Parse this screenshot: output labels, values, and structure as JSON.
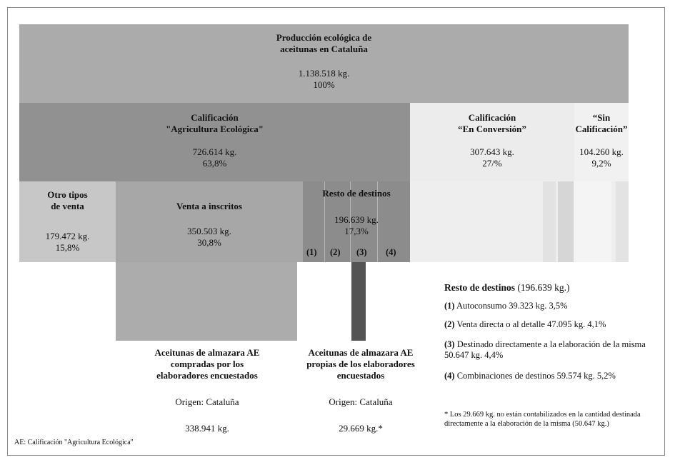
{
  "colors": {
    "top": "#ababab",
    "ae": "#919191",
    "conv": "#ececec",
    "sin": "#f1f1f1",
    "otro": "#c7c7c7",
    "venta": "#a7a7a7",
    "resto": "#8c8c8c",
    "bottom_left": "#acacac",
    "bottom_right": "#545454"
  },
  "top": {
    "title": "Producción ecológica de\naceitunas en Cataluña",
    "amount": "1.138.518 kg.",
    "pct": "100%"
  },
  "level2": {
    "ae": {
      "title": "Calificación\n\"Agricultura Ecológica\"",
      "amount": "726.614 kg.",
      "pct": "63,8%"
    },
    "conversion": {
      "title": "Calificación\n“En Conversión”",
      "amount": "307.643 kg.",
      "pct": "27/%"
    },
    "sin": {
      "title": "“Sin\nCalificación”",
      "amount": "104.260 kg.",
      "pct": "9,2%"
    }
  },
  "level3": {
    "otro": {
      "title": "Otro tipos\nde venta",
      "amount": "179.472 kg.",
      "pct": "15,8%"
    },
    "venta": {
      "title": "Venta a inscritos",
      "amount": "350.503 kg.",
      "pct": "30,8%"
    },
    "resto": {
      "title": "Resto de destinos",
      "amount": "196.639 kg.",
      "pct": "17,3%",
      "markers": [
        "(1)",
        "(2)",
        "(3)",
        "(4)"
      ]
    }
  },
  "bottom": {
    "left": {
      "title": "Aceitunas de almazara AE\ncompradas por los\nelaboradores encuestados",
      "origin": "Origen: Cataluña",
      "amount": "338.941 kg."
    },
    "right": {
      "title": "Aceitunas de almazara AE\npropias de los elaboradores\nencuestados",
      "origin": "Origen: Cataluña",
      "amount": "29.669 kg.*"
    }
  },
  "legend": {
    "heading_bold": "Resto de destinos",
    "heading_rest": " (196.639 kg.)",
    "items": [
      {
        "num": "(1)",
        "text": " Autoconsumo 39.323 kg. 3,5%"
      },
      {
        "num": "(2)",
        "text": " Venta directa o al detalle 47.095 kg. 4,1%"
      },
      {
        "num": "(3)",
        "text": " Destinado directamente a la elaboración de la misma 50.647 kg. 4,4%"
      },
      {
        "num": "(4)",
        "text": " Combinaciones de destinos 59.574 kg. 5,2%"
      }
    ],
    "footnote": "* Los 29.669 kg. no están contabilizados en la cantidad destinada directamente a la elaboración de la misma (50.647 kg.)"
  },
  "footer_note": "AE: Calificación \"Agricultura Ecológica\""
}
